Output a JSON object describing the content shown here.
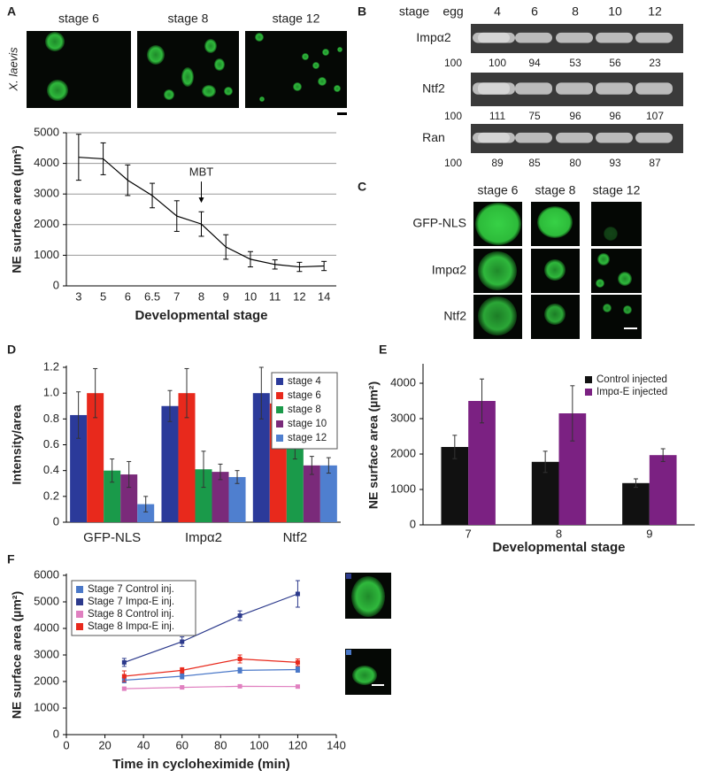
{
  "panel_labels": [
    "A",
    "B",
    "C",
    "D",
    "E",
    "F"
  ],
  "micrographs_A": {
    "columns": [
      "stage 6",
      "stage 8",
      "stage 12"
    ],
    "species": "X. laevis"
  },
  "blots_B": {
    "header": "stage",
    "lanes": [
      "egg",
      "4",
      "6",
      "8",
      "10",
      "12"
    ],
    "rows": [
      {
        "name": "Impα2",
        "values": [
          100,
          100,
          94,
          53,
          56,
          23
        ]
      },
      {
        "name": "Ntf2",
        "values": [
          100,
          111,
          75,
          96,
          96,
          107
        ]
      },
      {
        "name": "Ran",
        "values": [
          100,
          89,
          85,
          80,
          93,
          87
        ]
      }
    ]
  },
  "micrographs_C": {
    "columns": [
      "stage 6",
      "stage 8",
      "stage 12"
    ],
    "rows": [
      "GFP-NLS",
      "Impα2",
      "Ntf2"
    ]
  },
  "chart_data": [
    {
      "type": "line",
      "y_label": "NE surface area (µm²)",
      "x_label": "Developmental stage",
      "categories": [
        "3",
        "5",
        "6",
        "6.5",
        "7",
        "8",
        "9",
        "10",
        "11",
        "12",
        "14"
      ],
      "values": [
        4200,
        4150,
        3450,
        2950,
        2280,
        2020,
        1270,
        870,
        700,
        620,
        650
      ],
      "errors": [
        750,
        520,
        500,
        400,
        500,
        400,
        400,
        250,
        150,
        150,
        150
      ],
      "color": "#000000",
      "ylim": [
        0,
        5000
      ],
      "yticks": [
        0,
        1000,
        2000,
        3000,
        4000,
        5000
      ],
      "grid": true,
      "annotations": [
        {
          "text": "MBT",
          "x": "8"
        }
      ]
    },
    {
      "type": "bar",
      "y_label": "Intensity/area",
      "categories": [
        "GFP-NLS",
        "Impα2",
        "Ntf2"
      ],
      "series": [
        {
          "name": "stage 4",
          "color": "#2b3a9a",
          "values": [
            0.83,
            0.9,
            1.0
          ],
          "errors": [
            0.18,
            0.12,
            0.2
          ]
        },
        {
          "name": "stage 6",
          "color": "#e8291c",
          "values": [
            1.0,
            1.0,
            0.92
          ],
          "errors": [
            0.19,
            0.19,
            0.18
          ]
        },
        {
          "name": "stage 8",
          "color": "#1a9a4a",
          "values": [
            0.4,
            0.41,
            0.59
          ],
          "errors": [
            0.09,
            0.14,
            0.1
          ]
        },
        {
          "name": "stage 10",
          "color": "#7a2a7a",
          "values": [
            0.37,
            0.39,
            0.44
          ],
          "errors": [
            0.1,
            0.06,
            0.07
          ]
        },
        {
          "name": "stage 12",
          "color": "#4f7fcf",
          "values": [
            0.14,
            0.35,
            0.44
          ],
          "errors": [
            0.06,
            0.05,
            0.06
          ]
        }
      ],
      "ylim": [
        0,
        1.2
      ],
      "yticks": [
        0,
        0.2,
        0.4,
        0.6,
        0.8,
        {
          "value": 1,
          "label": "1.0"
        },
        1.2
      ],
      "legend": "upper right",
      "legend_frame": true
    },
    {
      "type": "bar",
      "y_label": "NE surface area (µm²)",
      "x_label": "Developmental stage",
      "categories": [
        "7",
        "8",
        "9"
      ],
      "series": [
        {
          "name": "Control injected",
          "color": "#111111",
          "values": [
            2200,
            1780,
            1180
          ],
          "errors": [
            330,
            300,
            120
          ]
        },
        {
          "name": "Impα-E injected",
          "color": "#7b2182",
          "values": [
            3500,
            3150,
            1970
          ],
          "errors": [
            620,
            780,
            180
          ]
        }
      ],
      "ylim": [
        0,
        4500
      ],
      "yticks": [
        0,
        1000,
        2000,
        3000,
        4000
      ],
      "legend": "upper right",
      "legend_frame": false
    },
    {
      "type": "scatter",
      "y_label": "NE surface area (µm²)",
      "x_label": "Time in cycloheximide (min)",
      "x": [
        30,
        60,
        90,
        120
      ],
      "series": [
        {
          "name": "Stage 7 Control inj.",
          "color": "#4a78c8",
          "values": [
            2050,
            2200,
            2420,
            2450
          ],
          "errors": [
            100,
            100,
            100,
            100
          ]
        },
        {
          "name": "Stage 7 Impα-E inj.",
          "color": "#2c3a8c",
          "values": [
            2720,
            3500,
            4480,
            5300
          ],
          "errors": [
            150,
            180,
            180,
            500
          ]
        },
        {
          "name": "Stage 8 Control inj.",
          "color": "#e080c0",
          "values": [
            1730,
            1780,
            1820,
            1810
          ],
          "errors": [
            50,
            50,
            50,
            50
          ]
        },
        {
          "name": "Stage 8 Impα-E inj.",
          "color": "#e8291c",
          "values": [
            2200,
            2420,
            2850,
            2720
          ],
          "errors": [
            200,
            100,
            150,
            130
          ]
        }
      ],
      "xlim": [
        0,
        140
      ],
      "xticks": [
        0,
        20,
        40,
        60,
        80,
        100,
        120,
        140
      ],
      "ylim": [
        0,
        6000
      ],
      "yticks": [
        0,
        1000,
        2000,
        3000,
        4000,
        5000,
        6000
      ],
      "legend": "upper left",
      "legend_frame": true
    }
  ]
}
